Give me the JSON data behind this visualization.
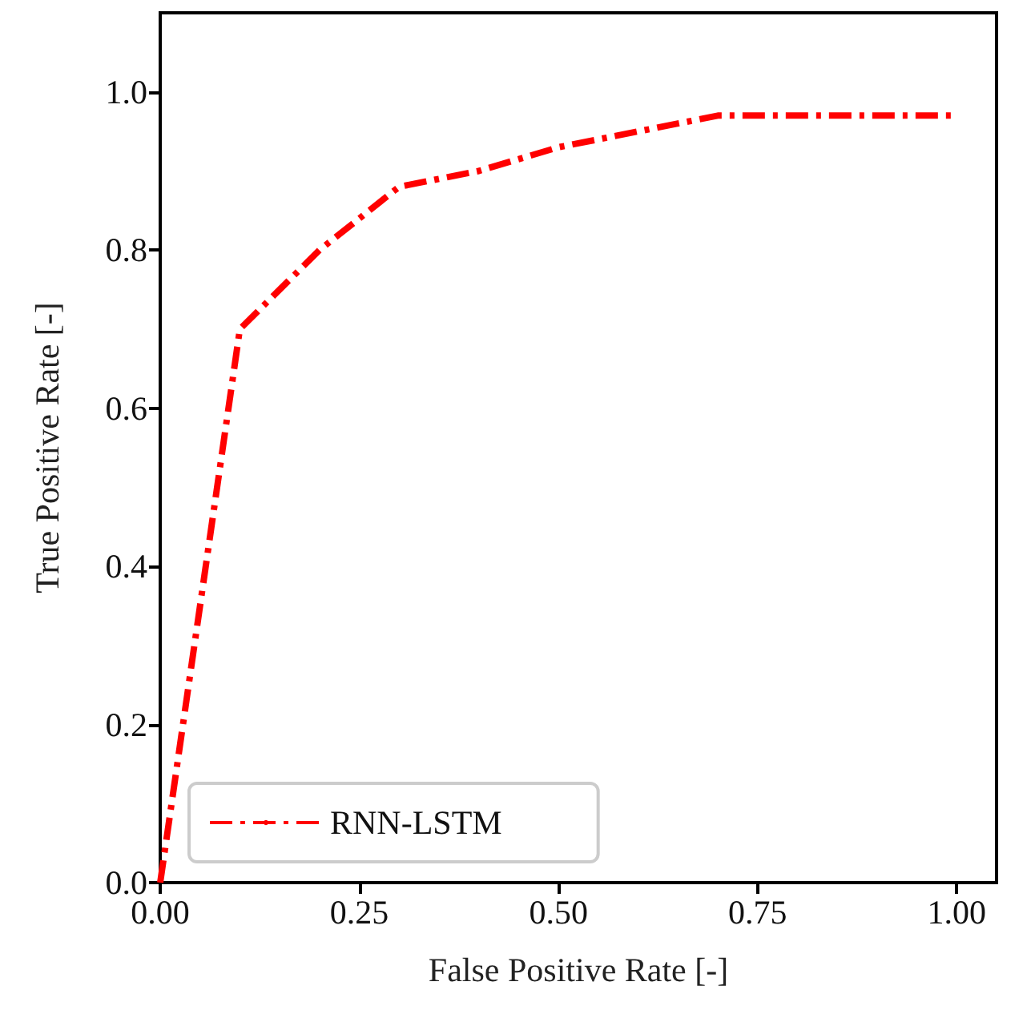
{
  "chart_data": {
    "type": "line",
    "xlabel": "False Positive Rate [-]",
    "ylabel": "True Positive Rate [-]",
    "x": [
      0,
      0.1,
      0.2,
      0.3,
      0.4,
      0.5,
      0.6,
      0.7,
      1.0
    ],
    "series": [
      {
        "name": "RNN-LSTM",
        "color": "#ff0000",
        "values": [
          0,
          0.7,
          0.8,
          0.88,
          0.9,
          0.93,
          0.95,
          0.97,
          0.97
        ]
      }
    ],
    "xlim": [
      0,
      1.05
    ],
    "xticks": [
      {
        "value": 0,
        "label": "0.00"
      },
      {
        "value": 0.25,
        "label": "0.25"
      },
      {
        "value": 0.5,
        "label": "0.50"
      },
      {
        "value": 0.75,
        "label": "0.75"
      },
      {
        "value": 1,
        "label": "1.00"
      }
    ],
    "ylim": [
      0,
      1.1
    ],
    "yticks": [
      {
        "value": 0,
        "label": "0.0"
      },
      {
        "value": 0.2,
        "label": "0.2"
      },
      {
        "value": 0.4,
        "label": "0.4"
      },
      {
        "value": 0.6,
        "label": "0.6"
      },
      {
        "value": 0.8,
        "label": "0.8"
      },
      {
        "value": 1,
        "label": "1.0"
      }
    ],
    "grid": false,
    "legend": "bottom left",
    "marker": "none",
    "line_style": "dashdot"
  }
}
